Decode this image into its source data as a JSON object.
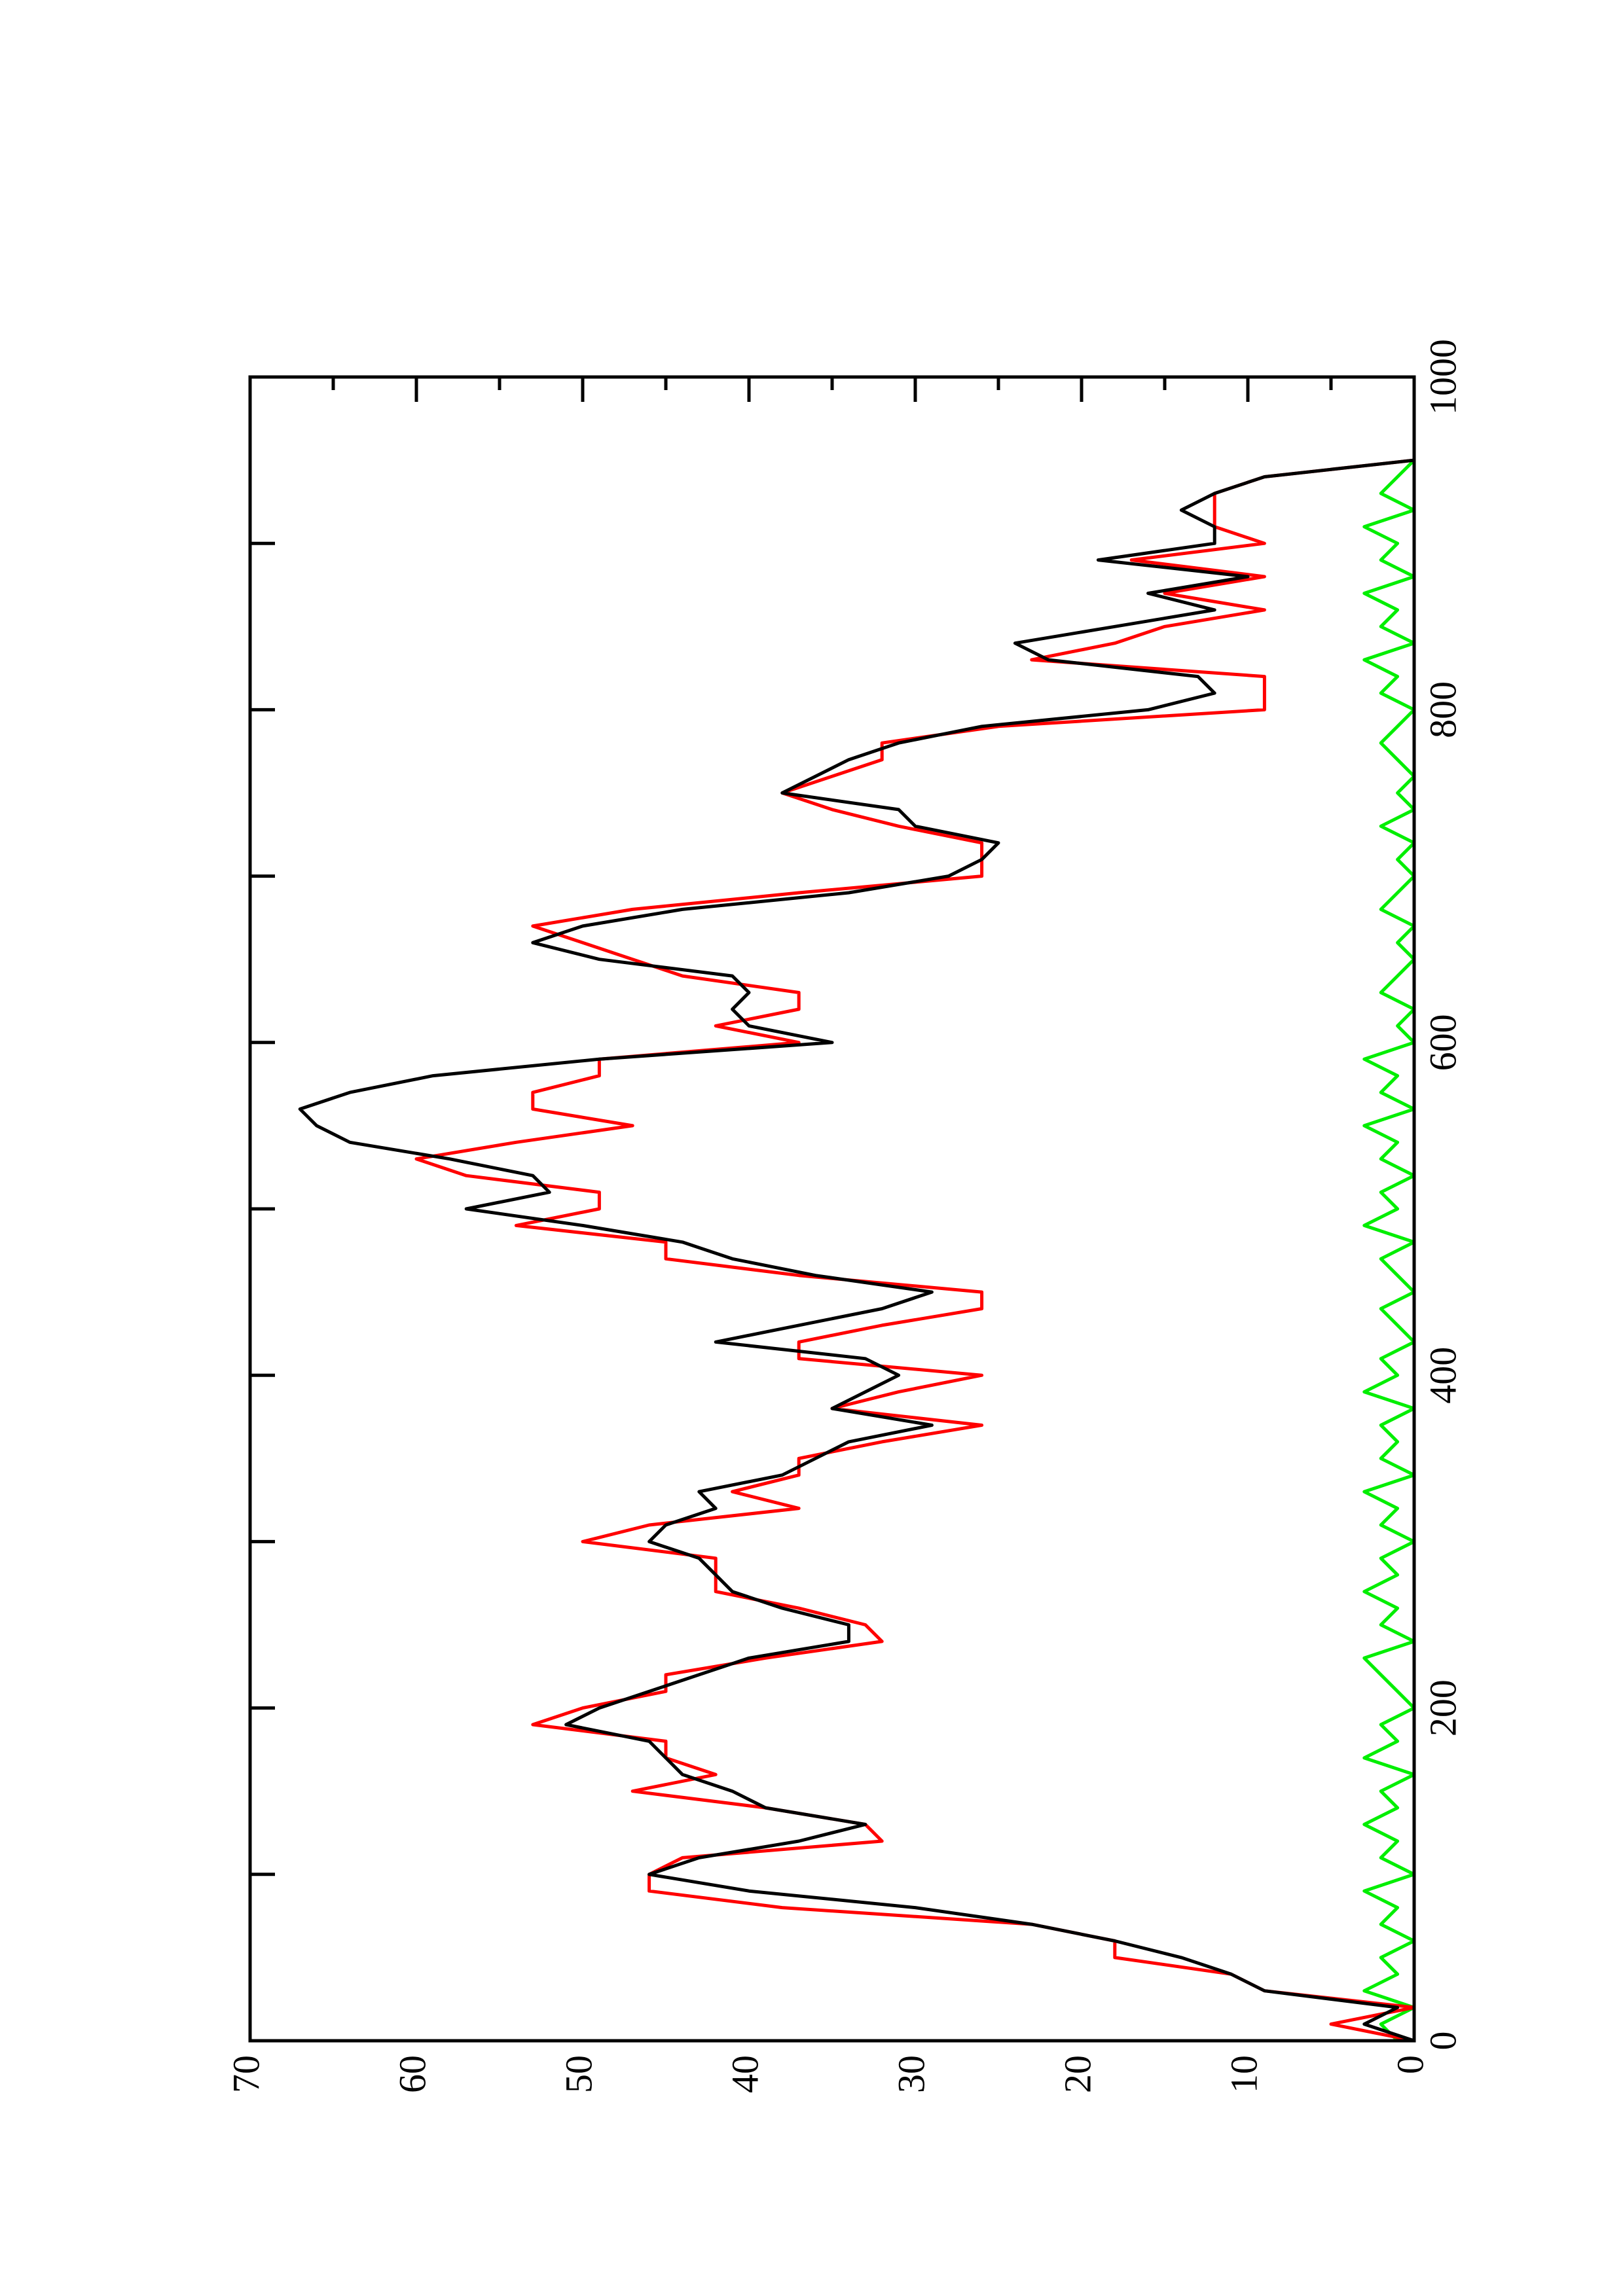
{
  "chart_data": {
    "type": "line",
    "x": [
      0,
      10,
      20,
      30,
      40,
      50,
      60,
      70,
      80,
      90,
      100,
      110,
      120,
      130,
      140,
      150,
      160,
      170,
      180,
      190,
      200,
      210,
      220,
      230,
      240,
      250,
      260,
      270,
      280,
      290,
      300,
      310,
      320,
      330,
      340,
      350,
      360,
      370,
      380,
      390,
      400,
      410,
      420,
      430,
      440,
      450,
      460,
      470,
      480,
      490,
      500,
      510,
      520,
      530,
      540,
      550,
      560,
      570,
      580,
      590,
      600,
      610,
      620,
      630,
      640,
      650,
      660,
      670,
      680,
      690,
      700,
      710,
      720,
      730,
      740,
      750,
      760,
      770,
      780,
      790,
      800,
      810,
      820,
      830,
      840,
      850,
      860,
      870,
      880,
      890,
      900,
      910,
      920,
      930,
      940,
      950
    ],
    "series": [
      {
        "color": "#000000",
        "values": [
          0,
          3,
          1,
          9,
          11,
          14,
          18,
          23,
          30,
          40,
          46,
          43,
          37,
          33,
          39,
          41,
          44,
          45,
          46,
          51,
          49,
          46,
          43,
          40,
          34,
          34,
          38,
          41,
          42,
          43,
          46,
          45,
          42,
          43,
          38,
          36,
          34,
          29,
          35,
          33,
          31,
          33,
          42,
          37,
          32,
          29,
          36,
          41,
          44,
          50,
          57,
          52,
          53,
          58,
          64,
          66,
          67,
          64,
          59,
          49,
          35,
          40,
          41,
          40,
          41,
          49,
          53,
          50,
          44,
          34,
          28,
          26,
          25,
          30,
          31,
          38,
          36,
          34,
          31,
          26,
          16,
          12,
          13,
          22,
          24,
          18,
          12,
          16,
          10,
          19,
          12,
          12,
          14,
          12,
          9,
          0
        ]
      },
      {
        "color": "#ff0000",
        "values": [
          0,
          5,
          0,
          9,
          11,
          18,
          18,
          23,
          38,
          46,
          46,
          44,
          32,
          33,
          39,
          47,
          42,
          45,
          45,
          53,
          50,
          45,
          45,
          39,
          32,
          33,
          37,
          42,
          42,
          42,
          50,
          46,
          37,
          41,
          37,
          37,
          32,
          26,
          35,
          31,
          26,
          37,
          37,
          32,
          26,
          26,
          37,
          45,
          45,
          54,
          49,
          49,
          57,
          60,
          54,
          47,
          53,
          53,
          49,
          49,
          37,
          42,
          37,
          37,
          44,
          47,
          50,
          53,
          47,
          37,
          26,
          26,
          26,
          31,
          35,
          38,
          35,
          32,
          32,
          25,
          9,
          9,
          9,
          23,
          18,
          15,
          9,
          15,
          9,
          17,
          9,
          12,
          12,
          12,
          9,
          0
        ]
      },
      {
        "color": "#00ee00",
        "values": [
          1,
          2,
          0,
          3,
          1,
          2,
          0,
          2,
          1,
          3,
          0,
          2,
          1,
          3,
          1,
          2,
          0,
          3,
          1,
          2,
          0,
          1,
          2,
          3,
          0,
          2,
          1,
          3,
          1,
          2,
          0,
          2,
          1,
          3,
          0,
          2,
          1,
          2,
          0,
          3,
          1,
          2,
          0,
          1,
          2,
          0,
          1,
          2,
          0,
          3,
          1,
          2,
          0,
          2,
          1,
          3,
          0,
          2,
          1,
          3,
          0,
          1,
          0,
          2,
          1,
          0,
          1,
          0,
          2,
          1,
          0,
          1,
          0,
          2,
          0,
          1,
          0,
          1,
          2,
          1,
          0,
          2,
          1,
          3,
          0,
          2,
          1,
          3,
          0,
          2,
          1,
          3,
          0,
          2,
          1,
          0
        ]
      }
    ],
    "xlim": [
      0,
      1000
    ],
    "xticks": [
      0,
      200,
      400,
      600,
      800,
      1000
    ],
    "xminorticks": [
      100,
      300,
      500,
      700,
      900
    ],
    "ylim": [
      0,
      70
    ],
    "yticks": [
      0,
      10,
      20,
      30,
      40,
      50,
      60,
      70
    ],
    "yminorticks": [
      5,
      15,
      25,
      35,
      45,
      55,
      65
    ],
    "rotation": -90
  }
}
